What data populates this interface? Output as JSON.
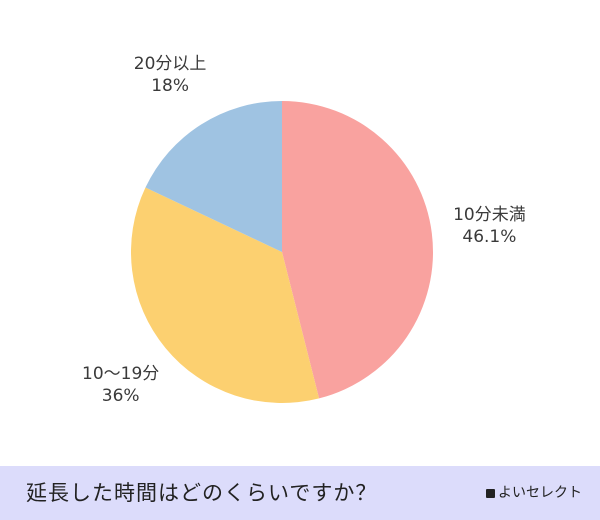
{
  "chart_data": {
    "type": "pie",
    "title": "",
    "slices": [
      {
        "label": "10分未満",
        "value": 46.1,
        "value_label": "46.1%",
        "color": "#f9a29f"
      },
      {
        "label": "10〜19分",
        "value": 36,
        "value_label": "36%",
        "color": "#fcd070"
      },
      {
        "label": "20分以上",
        "value": 18,
        "value_label": "18%",
        "color": "#9fc3e2"
      }
    ],
    "start": "12 o'clock",
    "direction": "clockwise"
  },
  "footer": {
    "question": "延長した時間はどのくらいですか？",
    "brand": "よいセレクト"
  }
}
